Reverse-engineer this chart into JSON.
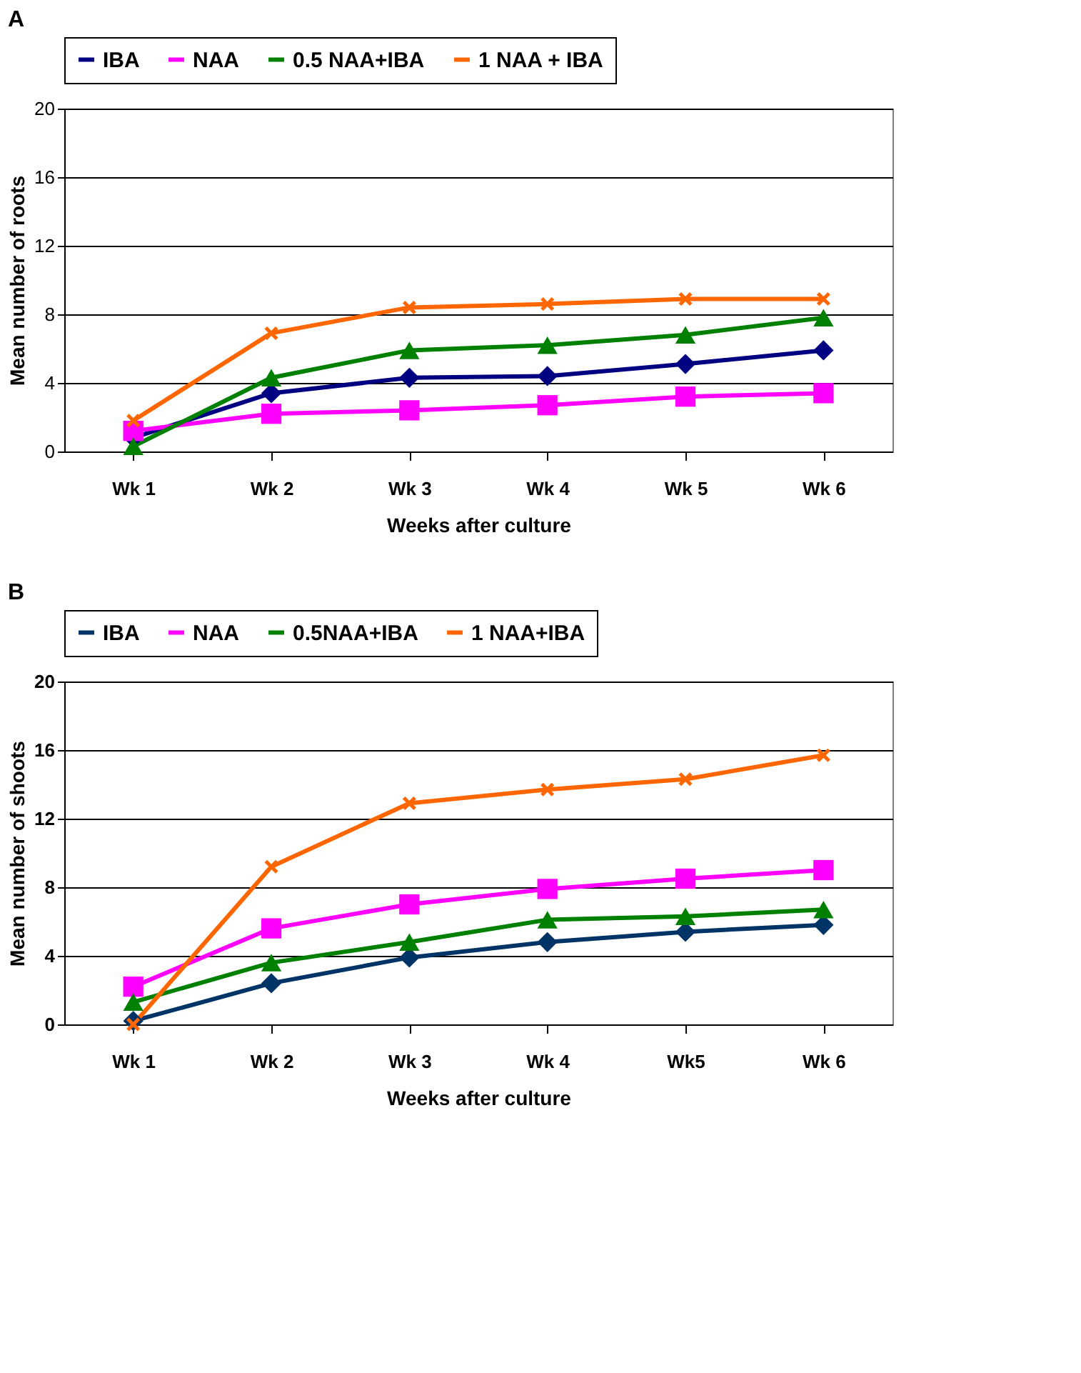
{
  "chart_data": [
    {
      "type": "line",
      "title": "A",
      "xlabel": "Weeks after culture",
      "ylabel": "Mean number of roots",
      "categories": [
        "Wk 1",
        "Wk 2",
        "Wk 3",
        "Wk 4",
        "Wk 5",
        "Wk 6"
      ],
      "ylim": [
        0,
        20
      ],
      "yticks": [
        0,
        4,
        8,
        12,
        16,
        20
      ],
      "grid": "y",
      "legend": "top",
      "series": [
        {
          "name": "IBA",
          "color": "#000080",
          "marker": "diamond",
          "values": [
            0.8,
            3.4,
            4.3,
            4.4,
            5.1,
            5.9
          ]
        },
        {
          "name": "NAA",
          "color": "#ff00ff",
          "marker": "square",
          "values": [
            1.2,
            2.2,
            2.4,
            2.7,
            3.2,
            3.4
          ]
        },
        {
          "name": "0.5 NAA+IBA",
          "color": "#008000",
          "marker": "triangle",
          "values": [
            0.3,
            4.3,
            5.9,
            6.2,
            6.8,
            7.8
          ]
        },
        {
          "name": "1 NAA + IBA",
          "color": "#ff6600",
          "marker": "cross",
          "values": [
            1.8,
            6.9,
            8.4,
            8.6,
            8.9,
            8.9
          ]
        }
      ]
    },
    {
      "type": "line",
      "title": "B",
      "xlabel": "Weeks after culture",
      "ylabel": "Mean number of shoots",
      "categories": [
        "Wk  1",
        "Wk 2",
        "Wk 3",
        "Wk 4",
        "Wk5",
        "Wk 6"
      ],
      "ylim": [
        0,
        20
      ],
      "yticks": [
        0,
        4,
        8,
        12,
        16,
        20
      ],
      "grid": "y",
      "legend": "top",
      "series": [
        {
          "name": "IBA",
          "color": "#003366",
          "marker": "diamond",
          "values": [
            0.2,
            2.4,
            3.9,
            4.8,
            5.4,
            5.8
          ]
        },
        {
          "name": "NAA",
          "color": "#ff00ff",
          "marker": "square",
          "values": [
            2.2,
            5.6,
            7.0,
            7.9,
            8.5,
            9.0
          ]
        },
        {
          "name": "0.5NAA+IBA",
          "color": "#008000",
          "marker": "triangle",
          "values": [
            1.3,
            3.6,
            4.8,
            6.1,
            6.3,
            6.7
          ]
        },
        {
          "name": "1 NAA+IBA",
          "color": "#ff6600",
          "marker": "cross",
          "values": [
            0,
            9.2,
            12.9,
            13.7,
            14.3,
            15.7
          ]
        }
      ]
    }
  ]
}
